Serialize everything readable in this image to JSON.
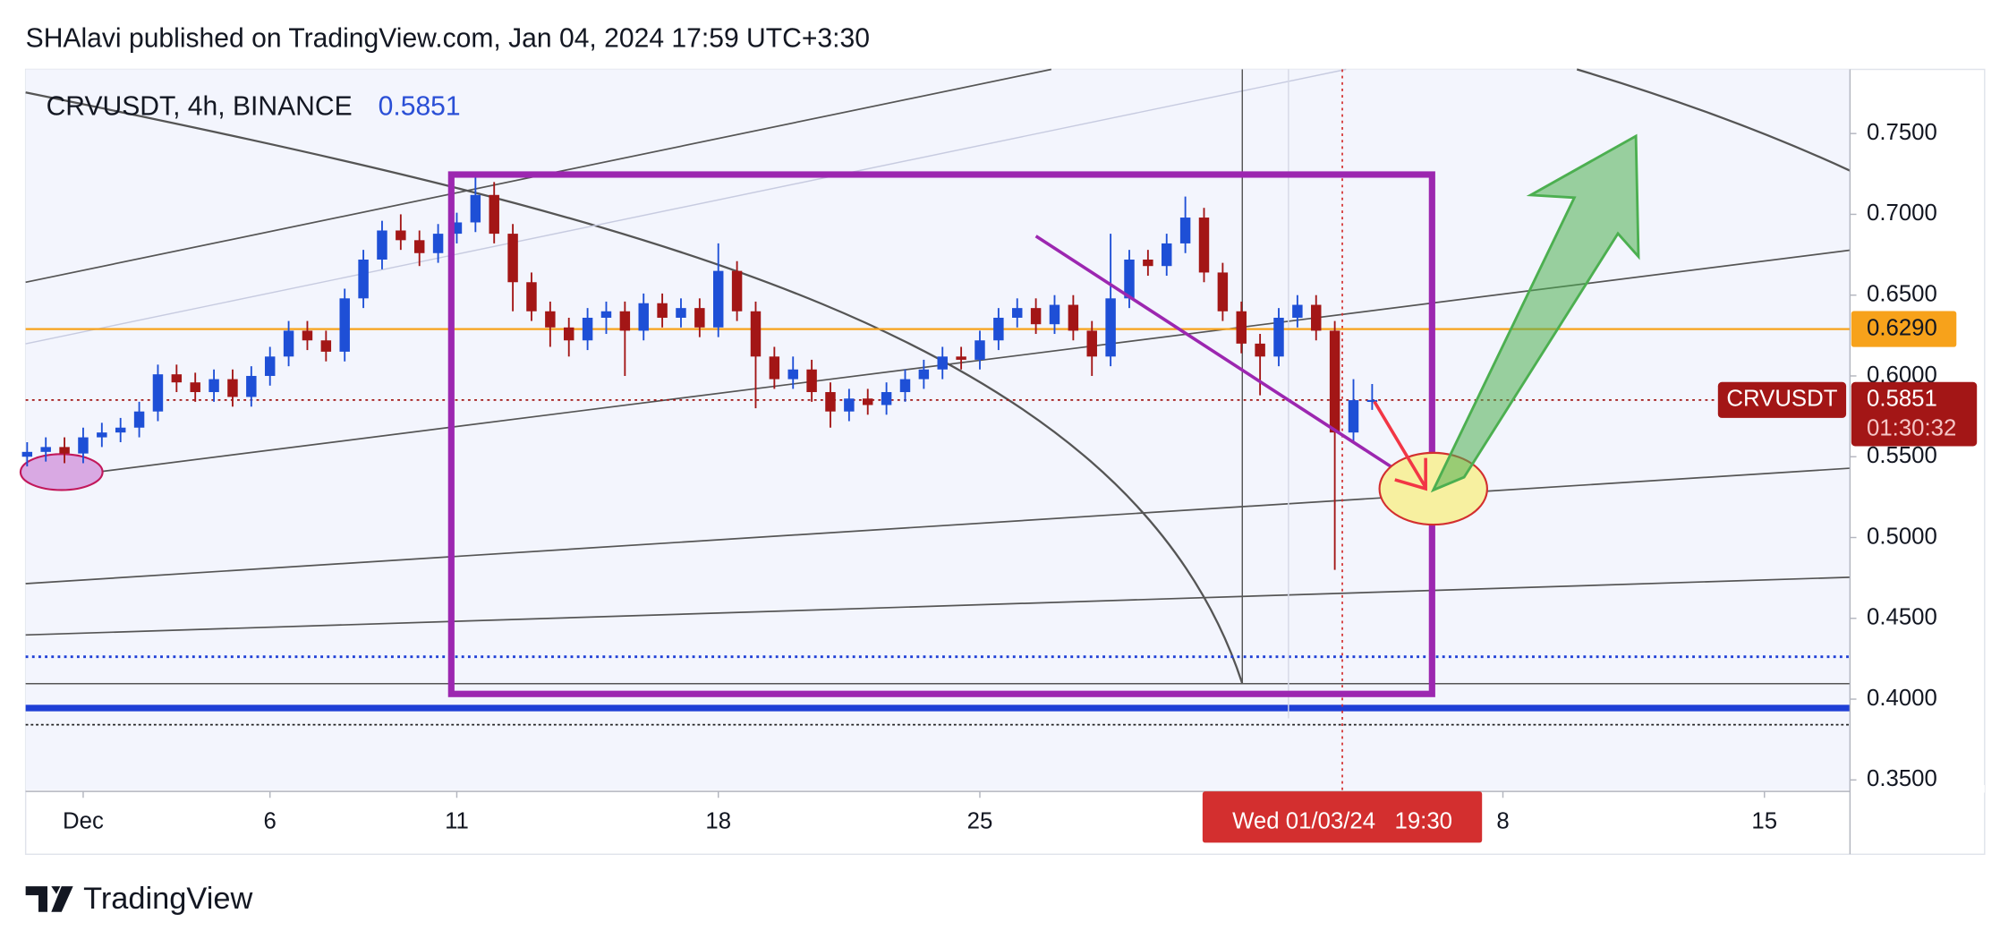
{
  "header": {
    "text": "SHAlavi published on TradingView.com, Jan 04, 2024 17:59 UTC+3:30"
  },
  "footer": {
    "logo_text": "TradingView"
  },
  "chart_data": {
    "type": "candlestick",
    "symbol_label": "CRVUSDT, 4h, BINANCE",
    "last_price": 0.5851,
    "price_tag_name": "CRVUSDT",
    "countdown": "01:30:32",
    "crosshair_label": "Wed 01/03/24   19:30",
    "level": {
      "value": 0.629,
      "label": "0.6290"
    },
    "up_color": "#1e4fd6",
    "down_color": "#a31616",
    "level_color": "#f7a21b",
    "xlim": [
      -1.54,
      47.29
    ],
    "xticks": [
      {
        "value": 0,
        "label": "Dec"
      },
      {
        "value": 5,
        "label": "6"
      },
      {
        "value": 10,
        "label": "11"
      },
      {
        "value": 17,
        "label": "18"
      },
      {
        "value": 24,
        "label": "25"
      },
      {
        "value": 38,
        "label": "8"
      },
      {
        "value": 45,
        "label": "15"
      }
    ],
    "ylim": [
      0.3437,
      0.7897
    ],
    "yticks": [
      {
        "value": 0.35,
        "label": "0.3500"
      },
      {
        "value": 0.4,
        "label": "0.4000"
      },
      {
        "value": 0.45,
        "label": "0.4500"
      },
      {
        "value": 0.5,
        "label": "0.5000"
      },
      {
        "value": 0.55,
        "label": "0.5500"
      },
      {
        "value": 0.6,
        "label": "0.6000"
      },
      {
        "value": 0.65,
        "label": "0.6500"
      },
      {
        "value": 0.7,
        "label": "0.7000"
      },
      {
        "value": 0.75,
        "label": "0.7500"
      }
    ],
    "x": [
      -1.5,
      -1,
      -0.5,
      0,
      0.5,
      1,
      1.5,
      2,
      2.5,
      3,
      3.5,
      4,
      4.5,
      5,
      5.5,
      6,
      6.5,
      7,
      7.5,
      8,
      8.5,
      9,
      9.5,
      10,
      10.5,
      11,
      11.5,
      12,
      12.5,
      13,
      13.5,
      14,
      14.5,
      15,
      15.5,
      16,
      16.5,
      17,
      17.5,
      18,
      18.5,
      19,
      19.5,
      20,
      20.5,
      21,
      21.5,
      22,
      22.5,
      23,
      23.5,
      24,
      24.5,
      25,
      25.5,
      26,
      26.5,
      27,
      27.5,
      28,
      28.5,
      29,
      29.5,
      30,
      30.5,
      31,
      31.5,
      32,
      32.5,
      33,
      33.5,
      34,
      34.5
    ],
    "ohlc": [
      [
        0.55,
        0.559,
        0.544,
        0.553
      ],
      [
        0.553,
        0.562,
        0.547,
        0.556
      ],
      [
        0.556,
        0.562,
        0.546,
        0.552
      ],
      [
        0.552,
        0.568,
        0.546,
        0.562
      ],
      [
        0.562,
        0.571,
        0.556,
        0.565
      ],
      [
        0.565,
        0.574,
        0.559,
        0.568
      ],
      [
        0.568,
        0.584,
        0.562,
        0.578
      ],
      [
        0.578,
        0.607,
        0.572,
        0.601
      ],
      [
        0.601,
        0.607,
        0.59,
        0.596
      ],
      [
        0.596,
        0.602,
        0.584,
        0.59
      ],
      [
        0.59,
        0.604,
        0.584,
        0.598
      ],
      [
        0.598,
        0.604,
        0.581,
        0.587
      ],
      [
        0.587,
        0.606,
        0.581,
        0.6
      ],
      [
        0.6,
        0.618,
        0.594,
        0.612
      ],
      [
        0.612,
        0.634,
        0.606,
        0.628
      ],
      [
        0.628,
        0.634,
        0.616,
        0.622
      ],
      [
        0.622,
        0.628,
        0.609,
        0.615
      ],
      [
        0.615,
        0.654,
        0.609,
        0.648
      ],
      [
        0.648,
        0.678,
        0.642,
        0.672
      ],
      [
        0.672,
        0.696,
        0.666,
        0.69
      ],
      [
        0.69,
        0.7,
        0.678,
        0.684
      ],
      [
        0.684,
        0.69,
        0.668,
        0.676
      ],
      [
        0.676,
        0.694,
        0.67,
        0.688
      ],
      [
        0.688,
        0.701,
        0.682,
        0.695
      ],
      [
        0.695,
        0.725,
        0.689,
        0.712
      ],
      [
        0.712,
        0.72,
        0.682,
        0.688
      ],
      [
        0.688,
        0.694,
        0.64,
        0.658
      ],
      [
        0.658,
        0.664,
        0.634,
        0.64
      ],
      [
        0.64,
        0.646,
        0.618,
        0.63
      ],
      [
        0.63,
        0.636,
        0.612,
        0.622
      ],
      [
        0.622,
        0.642,
        0.616,
        0.636
      ],
      [
        0.636,
        0.646,
        0.626,
        0.64
      ],
      [
        0.64,
        0.646,
        0.6,
        0.628
      ],
      [
        0.628,
        0.651,
        0.622,
        0.645
      ],
      [
        0.645,
        0.651,
        0.63,
        0.636
      ],
      [
        0.636,
        0.648,
        0.63,
        0.642
      ],
      [
        0.642,
        0.648,
        0.624,
        0.63
      ],
      [
        0.63,
        0.682,
        0.624,
        0.665
      ],
      [
        0.665,
        0.671,
        0.634,
        0.64
      ],
      [
        0.64,
        0.646,
        0.58,
        0.612
      ],
      [
        0.612,
        0.618,
        0.592,
        0.598
      ],
      [
        0.598,
        0.612,
        0.592,
        0.604
      ],
      [
        0.604,
        0.61,
        0.584,
        0.59
      ],
      [
        0.59,
        0.596,
        0.568,
        0.578
      ],
      [
        0.578,
        0.592,
        0.572,
        0.586
      ],
      [
        0.586,
        0.592,
        0.576,
        0.582
      ],
      [
        0.582,
        0.596,
        0.576,
        0.59
      ],
      [
        0.59,
        0.604,
        0.584,
        0.598
      ],
      [
        0.598,
        0.61,
        0.592,
        0.604
      ],
      [
        0.604,
        0.618,
        0.598,
        0.612
      ],
      [
        0.612,
        0.618,
        0.604,
        0.61
      ],
      [
        0.61,
        0.628,
        0.604,
        0.622
      ],
      [
        0.622,
        0.642,
        0.616,
        0.636
      ],
      [
        0.636,
        0.648,
        0.63,
        0.642
      ],
      [
        0.642,
        0.648,
        0.626,
        0.632
      ],
      [
        0.632,
        0.65,
        0.626,
        0.644
      ],
      [
        0.644,
        0.65,
        0.622,
        0.628
      ],
      [
        0.628,
        0.634,
        0.6,
        0.612
      ],
      [
        0.612,
        0.688,
        0.606,
        0.648
      ],
      [
        0.648,
        0.678,
        0.642,
        0.672
      ],
      [
        0.672,
        0.678,
        0.662,
        0.668
      ],
      [
        0.668,
        0.688,
        0.662,
        0.682
      ],
      [
        0.682,
        0.711,
        0.676,
        0.698
      ],
      [
        0.698,
        0.704,
        0.658,
        0.664
      ],
      [
        0.664,
        0.67,
        0.634,
        0.64
      ],
      [
        0.64,
        0.646,
        0.614,
        0.62
      ],
      [
        0.62,
        0.626,
        0.588,
        0.612
      ],
      [
        0.612,
        0.642,
        0.606,
        0.636
      ],
      [
        0.636,
        0.65,
        0.63,
        0.644
      ],
      [
        0.644,
        0.65,
        0.622,
        0.628
      ],
      [
        0.628,
        0.634,
        0.48,
        0.565
      ],
      [
        0.565,
        0.598,
        0.559,
        0.585
      ],
      [
        0.585,
        0.595,
        0.579,
        0.5851
      ]
    ]
  }
}
